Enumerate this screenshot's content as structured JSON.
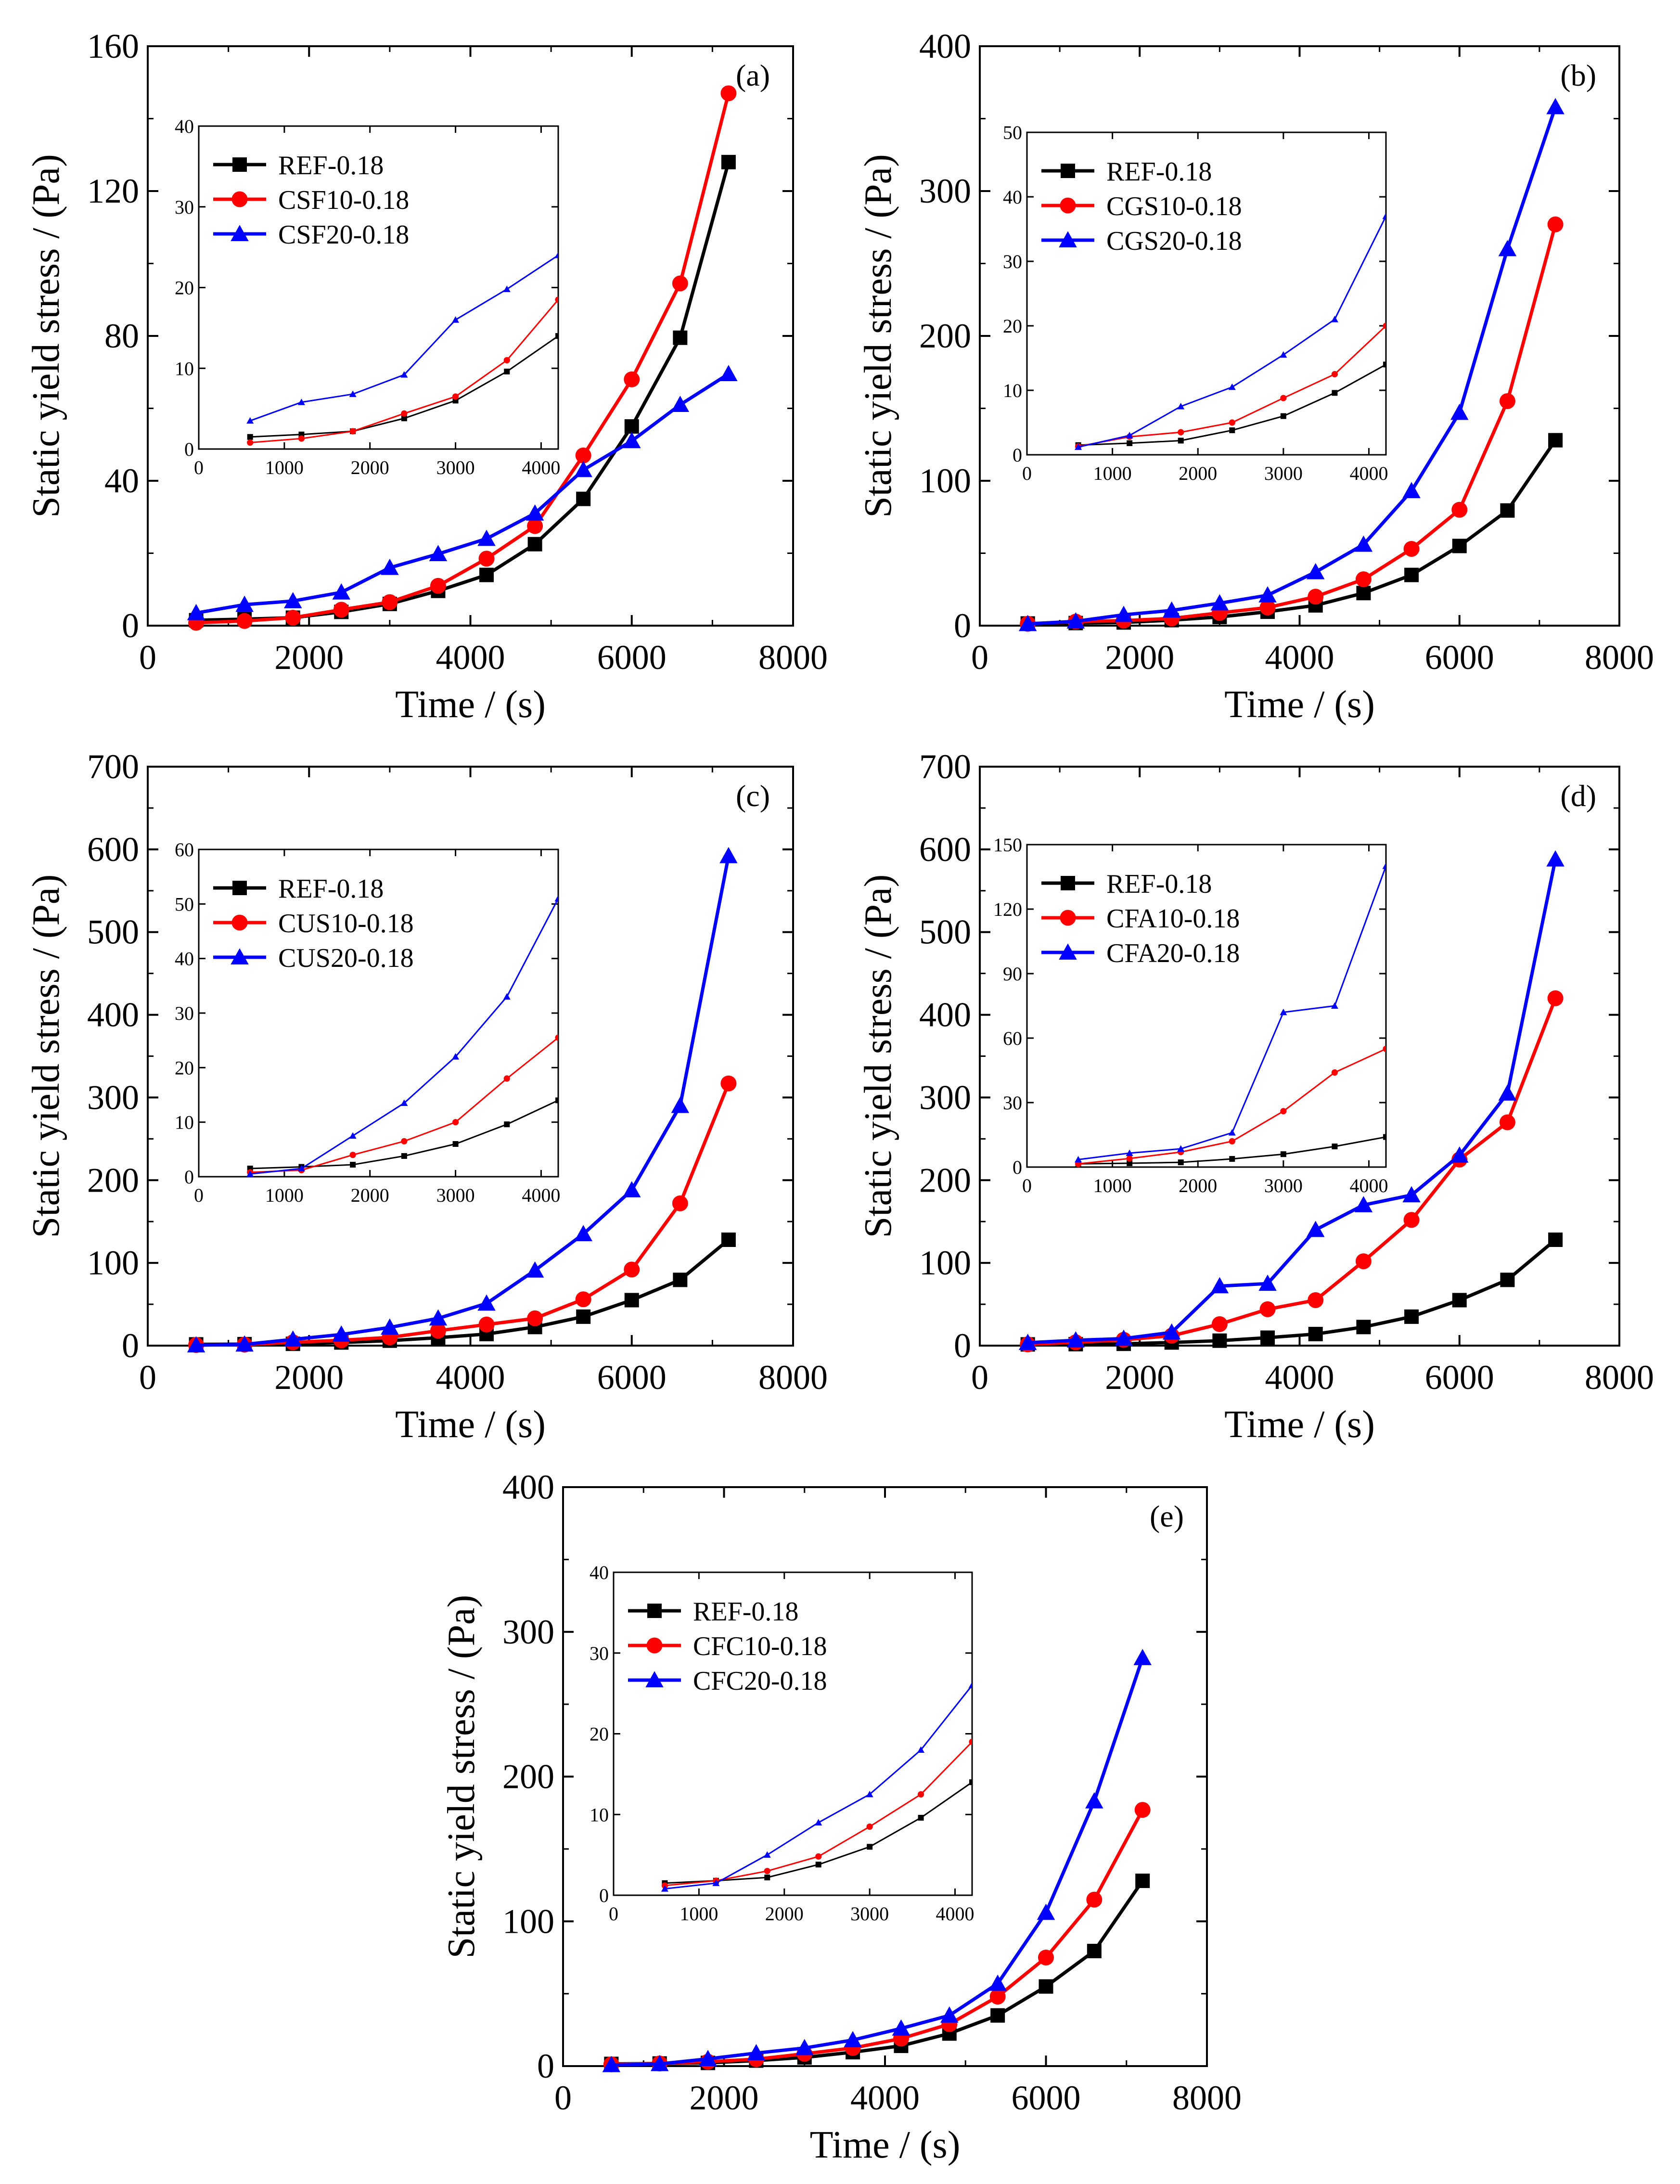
{
  "figure": {
    "colors": {
      "REF": "#000000",
      "A10": "#ff0000",
      "A20": "#0000ff"
    }
  },
  "chart_data": [
    {
      "panel": "(a)",
      "type": "line",
      "xlabel": "Time / (s)",
      "ylabel": "Static yield stress / (Pa)",
      "xlim": [
        0,
        8000
      ],
      "ylim": [
        0,
        160
      ],
      "xticks": [
        0,
        2000,
        4000,
        6000,
        8000
      ],
      "yticks": [
        0,
        40,
        80,
        120,
        160
      ],
      "x": [
        600,
        1200,
        1800,
        2400,
        3000,
        3600,
        4200,
        4800,
        5400,
        6000,
        6600,
        7200
      ],
      "series": [
        {
          "name": "REF-0.18",
          "color": "#000000",
          "marker": "square",
          "values": [
            1.5,
            1.8,
            2.2,
            3.8,
            6.0,
            9.6,
            14.0,
            22.5,
            35.0,
            55.0,
            79.5,
            128.0
          ]
        },
        {
          "name": "CSF10-0.18",
          "color": "#ff0000",
          "marker": "circle",
          "values": [
            0.8,
            1.3,
            2.2,
            4.4,
            6.5,
            11.0,
            18.5,
            27.5,
            47.0,
            68.0,
            94.5,
            147.0
          ]
        },
        {
          "name": "CSF20-0.18",
          "color": "#0000ff",
          "marker": "triangle",
          "values": [
            3.5,
            5.8,
            6.8,
            9.2,
            16.0,
            19.8,
            24.0,
            31.0,
            43.0,
            51.0,
            61.0,
            69.5
          ]
        }
      ],
      "inset": {
        "xlim": [
          0,
          4200
        ],
        "ylim": [
          0,
          40
        ],
        "xticks": [
          0,
          1000,
          2000,
          3000,
          4000
        ],
        "yticks": [
          0,
          10,
          20,
          30,
          40
        ],
        "x": [
          600,
          1200,
          1800,
          2400,
          3000,
          3600,
          4200
        ],
        "series": [
          {
            "name": "REF-0.18",
            "values": [
              1.5,
              1.8,
              2.2,
              3.8,
              6.0,
              9.6,
              14.0
            ]
          },
          {
            "name": "CSF10-0.18",
            "values": [
              0.8,
              1.3,
              2.2,
              4.4,
              6.5,
              11.0,
              18.5
            ]
          },
          {
            "name": "CSF20-0.18",
            "values": [
              3.5,
              5.8,
              6.8,
              9.2,
              16.0,
              19.8,
              24.0
            ]
          }
        ]
      }
    },
    {
      "panel": "(b)",
      "type": "line",
      "xlabel": "Time / (s)",
      "ylabel": "Static yield stress / (Pa)",
      "xlim": [
        0,
        8000
      ],
      "ylim": [
        0,
        400
      ],
      "xticks": [
        0,
        2000,
        4000,
        6000,
        8000
      ],
      "yticks": [
        0,
        100,
        200,
        300,
        400
      ],
      "x": [
        600,
        1200,
        1800,
        2400,
        3000,
        3600,
        4200,
        4800,
        5400,
        6000,
        6600,
        7200
      ],
      "series": [
        {
          "name": "REF-0.18",
          "color": "#000000",
          "marker": "square",
          "values": [
            1.5,
            1.8,
            2.2,
            3.8,
            6.0,
            9.6,
            14.0,
            22.5,
            35.0,
            55.0,
            79.5,
            128.0
          ]
        },
        {
          "name": "CGS10-0.18",
          "color": "#ff0000",
          "marker": "circle",
          "values": [
            1.3,
            2.8,
            3.5,
            5.0,
            8.8,
            12.5,
            20.0,
            32.0,
            53.0,
            80.0,
            155.0,
            277.0
          ]
        },
        {
          "name": "CGS20-0.18",
          "color": "#0000ff",
          "marker": "triangle",
          "values": [
            1.2,
            3.0,
            7.5,
            10.5,
            15.5,
            21.0,
            37.0,
            56.0,
            93.0,
            147.0,
            260.0,
            358.0
          ]
        }
      ],
      "inset": {
        "xlim": [
          0,
          4200
        ],
        "ylim": [
          0,
          50
        ],
        "xticks": [
          0,
          1000,
          2000,
          3000,
          4000
        ],
        "yticks": [
          0,
          10,
          20,
          30,
          40,
          50
        ],
        "x": [
          600,
          1200,
          1800,
          2400,
          3000,
          3600,
          4200
        ],
        "series": [
          {
            "name": "REF-0.18",
            "values": [
              1.5,
              1.8,
              2.2,
              3.8,
              6.0,
              9.6,
              14.0
            ]
          },
          {
            "name": "CGS10-0.18",
            "values": [
              1.3,
              2.8,
              3.5,
              5.0,
              8.8,
              12.5,
              20.0
            ]
          },
          {
            "name": "CGS20-0.18",
            "values": [
              1.2,
              3.0,
              7.5,
              10.5,
              15.5,
              21.0,
              37.0
            ]
          }
        ]
      }
    },
    {
      "panel": "(c)",
      "type": "line",
      "xlabel": "Time / (s)",
      "ylabel": "Static yield stress / (Pa)",
      "xlim": [
        0,
        8000
      ],
      "ylim": [
        0,
        700
      ],
      "xticks": [
        0,
        2000,
        4000,
        6000,
        8000
      ],
      "yticks": [
        0,
        100,
        200,
        300,
        400,
        500,
        600,
        700
      ],
      "x": [
        600,
        1200,
        1800,
        2400,
        3000,
        3600,
        4200,
        4800,
        5400,
        6000,
        6600,
        7200
      ],
      "series": [
        {
          "name": "REF-0.18",
          "color": "#000000",
          "marker": "square",
          "values": [
            1.5,
            1.8,
            2.2,
            3.8,
            6.0,
            9.6,
            14.0,
            22.5,
            35.0,
            55.0,
            79.5,
            128.0
          ]
        },
        {
          "name": "CUS10-0.18",
          "color": "#ff0000",
          "marker": "circle",
          "values": [
            0.8,
            1.2,
            4.0,
            6.5,
            10.0,
            18.0,
            25.5,
            33.0,
            56.0,
            92.0,
            172.0,
            317.0
          ]
        },
        {
          "name": "CUS20-0.18",
          "color": "#0000ff",
          "marker": "triangle",
          "values": [
            0.5,
            1.5,
            7.5,
            13.5,
            22.0,
            33.0,
            51.0,
            91.0,
            135.0,
            188.0,
            290.0,
            592.0
          ]
        }
      ],
      "inset": {
        "xlim": [
          0,
          4200
        ],
        "ylim": [
          0,
          60
        ],
        "xticks": [
          0,
          1000,
          2000,
          3000,
          4000
        ],
        "yticks": [
          0,
          10,
          20,
          30,
          40,
          50,
          60
        ],
        "x": [
          600,
          1200,
          1800,
          2400,
          3000,
          3600,
          4200
        ],
        "series": [
          {
            "name": "REF-0.18",
            "values": [
              1.5,
              1.8,
              2.2,
              3.8,
              6.0,
              9.6,
              14.0
            ]
          },
          {
            "name": "CUS10-0.18",
            "values": [
              0.8,
              1.2,
              4.0,
              6.5,
              10.0,
              18.0,
              25.5
            ]
          },
          {
            "name": "CUS20-0.18",
            "values": [
              0.5,
              1.5,
              7.5,
              13.5,
              22.0,
              33.0,
              51.0
            ]
          }
        ]
      }
    },
    {
      "panel": "(d)",
      "type": "line",
      "xlabel": "Time / (s)",
      "ylabel": "Static yield stress / (Pa)",
      "xlim": [
        0,
        8000
      ],
      "ylim": [
        0,
        700
      ],
      "xticks": [
        0,
        2000,
        4000,
        6000,
        8000
      ],
      "yticks": [
        0,
        100,
        200,
        300,
        400,
        500,
        600,
        700
      ],
      "x": [
        600,
        1200,
        1800,
        2400,
        3000,
        3600,
        4200,
        4800,
        5400,
        6000,
        6600,
        7200
      ],
      "series": [
        {
          "name": "REF-0.18",
          "color": "#000000",
          "marker": "square",
          "values": [
            1.5,
            1.8,
            2.2,
            3.8,
            6.0,
            9.6,
            14.0,
            22.5,
            35.0,
            55.0,
            79.5,
            128.0
          ]
        },
        {
          "name": "CFA10-0.18",
          "color": "#ff0000",
          "marker": "circle",
          "values": [
            1.5,
            4.0,
            7.0,
            12.0,
            26.0,
            44.0,
            55.0,
            102.0,
            152.0,
            225.0,
            270.0,
            420.0
          ]
        },
        {
          "name": "CFA20-0.18",
          "color": "#0000ff",
          "marker": "triangle",
          "values": [
            3.5,
            6.5,
            8.5,
            16.0,
            72.0,
            75.0,
            140.0,
            170.0,
            182.0,
            230.0,
            305.0,
            588.0
          ]
        }
      ],
      "inset": {
        "xlim": [
          0,
          4200
        ],
        "ylim": [
          0,
          150
        ],
        "xticks": [
          0,
          1000,
          2000,
          3000,
          4000
        ],
        "yticks": [
          0,
          30,
          60,
          90,
          120,
          150
        ],
        "x": [
          600,
          1200,
          1800,
          2400,
          3000,
          3600,
          4200
        ],
        "series": [
          {
            "name": "REF-0.18",
            "values": [
              1.5,
              1.8,
              2.2,
              3.8,
              6.0,
              9.6,
              14.0
            ]
          },
          {
            "name": "CFA10-0.18",
            "values": [
              1.5,
              4.0,
              7.0,
              12.0,
              26.0,
              44.0,
              55.0
            ]
          },
          {
            "name": "CFA20-0.18",
            "values": [
              3.5,
              6.5,
              8.5,
              16.0,
              72.0,
              75.0,
              140.0
            ]
          }
        ]
      }
    },
    {
      "panel": "(e)",
      "type": "line",
      "xlabel": "Time / (s)",
      "ylabel": "Static yield stress / (Pa)",
      "xlim": [
        0,
        8000
      ],
      "ylim": [
        0,
        400
      ],
      "xticks": [
        0,
        2000,
        4000,
        6000,
        8000
      ],
      "yticks": [
        0,
        100,
        200,
        300,
        400
      ],
      "x": [
        600,
        1200,
        1800,
        2400,
        3000,
        3600,
        4200,
        4800,
        5400,
        6000,
        6600,
        7200
      ],
      "series": [
        {
          "name": "REF-0.18",
          "color": "#000000",
          "marker": "square",
          "values": [
            1.5,
            1.8,
            2.2,
            3.8,
            6.0,
            9.6,
            14.0,
            22.5,
            35.0,
            55.0,
            79.5,
            128.0
          ]
        },
        {
          "name": "CFC10-0.18",
          "color": "#ff0000",
          "marker": "circle",
          "values": [
            1.2,
            1.8,
            3.0,
            4.8,
            8.5,
            12.5,
            19.0,
            29.0,
            48.0,
            75.0,
            115.0,
            177.0
          ]
        },
        {
          "name": "CFC20-0.18",
          "color": "#0000ff",
          "marker": "triangle",
          "values": [
            0.8,
            1.5,
            5.0,
            9.0,
            12.5,
            18.0,
            26.0,
            35.0,
            57.0,
            106.0,
            183.0,
            282.0
          ]
        }
      ],
      "inset": {
        "xlim": [
          0,
          4200
        ],
        "ylim": [
          0,
          40
        ],
        "xticks": [
          0,
          1000,
          2000,
          3000,
          4000
        ],
        "yticks": [
          0,
          10,
          20,
          30,
          40
        ],
        "x": [
          600,
          1200,
          1800,
          2400,
          3000,
          3600,
          4200
        ],
        "series": [
          {
            "name": "REF-0.18",
            "values": [
              1.5,
              1.8,
              2.2,
              3.8,
              6.0,
              9.6,
              14.0
            ]
          },
          {
            "name": "CFC10-0.18",
            "values": [
              1.2,
              1.8,
              3.0,
              4.8,
              8.5,
              12.5,
              19.0
            ]
          },
          {
            "name": "CFC20-0.18",
            "values": [
              0.8,
              1.5,
              5.0,
              9.0,
              12.5,
              18.0,
              26.0
            ]
          }
        ]
      }
    }
  ]
}
